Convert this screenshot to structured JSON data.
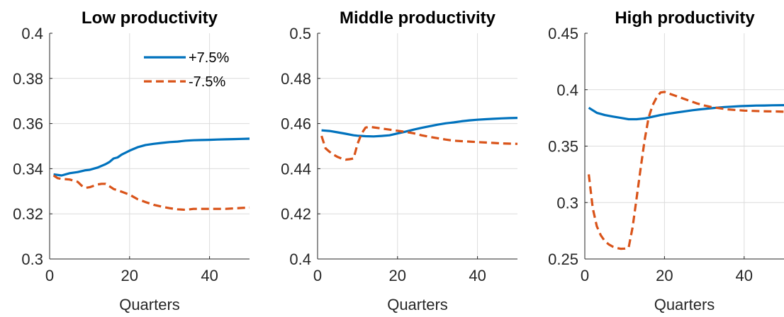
{
  "chart_data": [
    {
      "type": "line",
      "title": "Low productivity",
      "xlabel": "Quarters",
      "ylabel": "",
      "xlim": [
        0,
        50
      ],
      "ylim": [
        0.3,
        0.4
      ],
      "xticks": [
        "0",
        "20",
        "40"
      ],
      "xtick_values": [
        0,
        20,
        40
      ],
      "yticks": [
        "0.3",
        "0.32",
        "0.34",
        "0.36",
        "0.38",
        "0.4"
      ],
      "ytick_values": [
        0.3,
        0.32,
        0.34,
        0.36,
        0.38,
        0.4
      ],
      "grid": true,
      "legend": {
        "placement": "top-right",
        "entries": [
          "+7.5%",
          "-7.5%"
        ]
      },
      "series": [
        {
          "name": "+7.5%",
          "color": "#0072BD",
          "style": "solid",
          "x": [
            1,
            3,
            5,
            7,
            9,
            10,
            12,
            14,
            15,
            16,
            17,
            18,
            20,
            22,
            24,
            26,
            28,
            30,
            32,
            34,
            36,
            38,
            40,
            42,
            44,
            46,
            48,
            50
          ],
          "y": [
            0.3375,
            0.337,
            0.338,
            0.3385,
            0.3393,
            0.3395,
            0.3405,
            0.342,
            0.343,
            0.3445,
            0.345,
            0.3462,
            0.348,
            0.3495,
            0.3505,
            0.351,
            0.3514,
            0.3518,
            0.352,
            0.3524,
            0.3526,
            0.3527,
            0.3528,
            0.3529,
            0.353,
            0.3531,
            0.3532,
            0.3533
          ]
        },
        {
          "name": "-7.5%",
          "color": "#D95319",
          "style": "dashed",
          "x": [
            1,
            2,
            3,
            5,
            7,
            8,
            9,
            10,
            12,
            13,
            14,
            15,
            16,
            18,
            20,
            22,
            24,
            26,
            28,
            30,
            32,
            34,
            36,
            38,
            40,
            42,
            44,
            46,
            48,
            50
          ],
          "y": [
            0.337,
            0.3358,
            0.3355,
            0.3352,
            0.3342,
            0.3325,
            0.3315,
            0.3318,
            0.333,
            0.3333,
            0.3333,
            0.3322,
            0.331,
            0.3298,
            0.3285,
            0.3265,
            0.3252,
            0.324,
            0.3232,
            0.3225,
            0.322,
            0.3218,
            0.3222,
            0.3222,
            0.3222,
            0.3222,
            0.3222,
            0.3224,
            0.3226,
            0.3228
          ]
        }
      ]
    },
    {
      "type": "line",
      "title": "Middle productivity",
      "xlabel": "Quarters",
      "ylabel": "",
      "xlim": [
        0,
        50
      ],
      "ylim": [
        0.4,
        0.5
      ],
      "xticks": [
        "0",
        "20",
        "40"
      ],
      "xtick_values": [
        0,
        20,
        40
      ],
      "yticks": [
        "0.4",
        "0.42",
        "0.44",
        "0.46",
        "0.48",
        "0.5"
      ],
      "ytick_values": [
        0.4,
        0.42,
        0.44,
        0.46,
        0.48,
        0.5
      ],
      "grid": true,
      "series": [
        {
          "name": "+7.5%",
          "color": "#0072BD",
          "style": "solid",
          "x": [
            1,
            3,
            5,
            7,
            9,
            10,
            12,
            14,
            16,
            18,
            20,
            22,
            24,
            26,
            28,
            30,
            32,
            34,
            36,
            38,
            40,
            42,
            44,
            46,
            48,
            50
          ],
          "y": [
            0.457,
            0.4567,
            0.4561,
            0.4555,
            0.4548,
            0.4546,
            0.4544,
            0.4543,
            0.4545,
            0.4548,
            0.4556,
            0.4564,
            0.4573,
            0.4581,
            0.4588,
            0.4595,
            0.4601,
            0.4605,
            0.461,
            0.4614,
            0.4617,
            0.4619,
            0.4621,
            0.4623,
            0.4624,
            0.4625
          ]
        },
        {
          "name": "-7.5%",
          "color": "#D95319",
          "style": "dashed",
          "x": [
            1,
            2,
            3,
            4,
            5,
            6,
            7,
            8,
            9,
            10,
            11,
            12,
            13,
            14,
            16,
            18,
            20,
            22,
            24,
            26,
            28,
            30,
            32,
            34,
            36,
            38,
            40,
            42,
            44,
            46,
            48,
            50
          ],
          "y": [
            0.4545,
            0.449,
            0.4475,
            0.4462,
            0.4452,
            0.4445,
            0.444,
            0.4442,
            0.4445,
            0.451,
            0.4555,
            0.4582,
            0.4586,
            0.4583,
            0.4578,
            0.4573,
            0.4568,
            0.4563,
            0.4557,
            0.4548,
            0.4541,
            0.4535,
            0.4529,
            0.4524,
            0.4522,
            0.452,
            0.4518,
            0.4516,
            0.4514,
            0.4512,
            0.4511,
            0.451
          ]
        }
      ]
    },
    {
      "type": "line",
      "title": "High productivity",
      "xlabel": "Quarters",
      "ylabel": "",
      "xlim": [
        0,
        50
      ],
      "ylim": [
        0.25,
        0.45
      ],
      "xticks": [
        "0",
        "20",
        "40"
      ],
      "xtick_values": [
        0,
        20,
        40
      ],
      "yticks": [
        "0.25",
        "0.3",
        "0.35",
        "0.4",
        "0.45"
      ],
      "ytick_values": [
        0.25,
        0.3,
        0.35,
        0.4,
        0.45
      ],
      "grid": true,
      "series": [
        {
          "name": "+7.5%",
          "color": "#0072BD",
          "style": "solid",
          "x": [
            1,
            3,
            5,
            7,
            9,
            11,
            13,
            15,
            17,
            19,
            21,
            23,
            25,
            27,
            29,
            31,
            33,
            35,
            37,
            39,
            41,
            43,
            45,
            47,
            50
          ],
          "y": [
            0.384,
            0.3795,
            0.3775,
            0.3762,
            0.375,
            0.3738,
            0.3738,
            0.3745,
            0.376,
            0.3775,
            0.3787,
            0.3798,
            0.3808,
            0.3818,
            0.3826,
            0.3833,
            0.384,
            0.3846,
            0.385,
            0.3854,
            0.3857,
            0.3859,
            0.386,
            0.3862,
            0.3863
          ]
        },
        {
          "name": "-7.5%",
          "color": "#D95319",
          "style": "dashed",
          "x": [
            1,
            2,
            3,
            4,
            5,
            6,
            7,
            8,
            9,
            10,
            11,
            12,
            13,
            14,
            15,
            16,
            17,
            18,
            19,
            20,
            22,
            24,
            26,
            28,
            30,
            32,
            34,
            36,
            38,
            40,
            42,
            44,
            46,
            48,
            50
          ],
          "y": [
            0.325,
            0.295,
            0.279,
            0.271,
            0.266,
            0.263,
            0.261,
            0.2598,
            0.259,
            0.2592,
            0.26,
            0.278,
            0.304,
            0.33,
            0.355,
            0.375,
            0.386,
            0.393,
            0.3975,
            0.398,
            0.3955,
            0.393,
            0.3905,
            0.388,
            0.386,
            0.3845,
            0.3835,
            0.3825,
            0.382,
            0.3815,
            0.3812,
            0.381,
            0.3808,
            0.3807,
            0.3805
          ]
        }
      ]
    }
  ]
}
